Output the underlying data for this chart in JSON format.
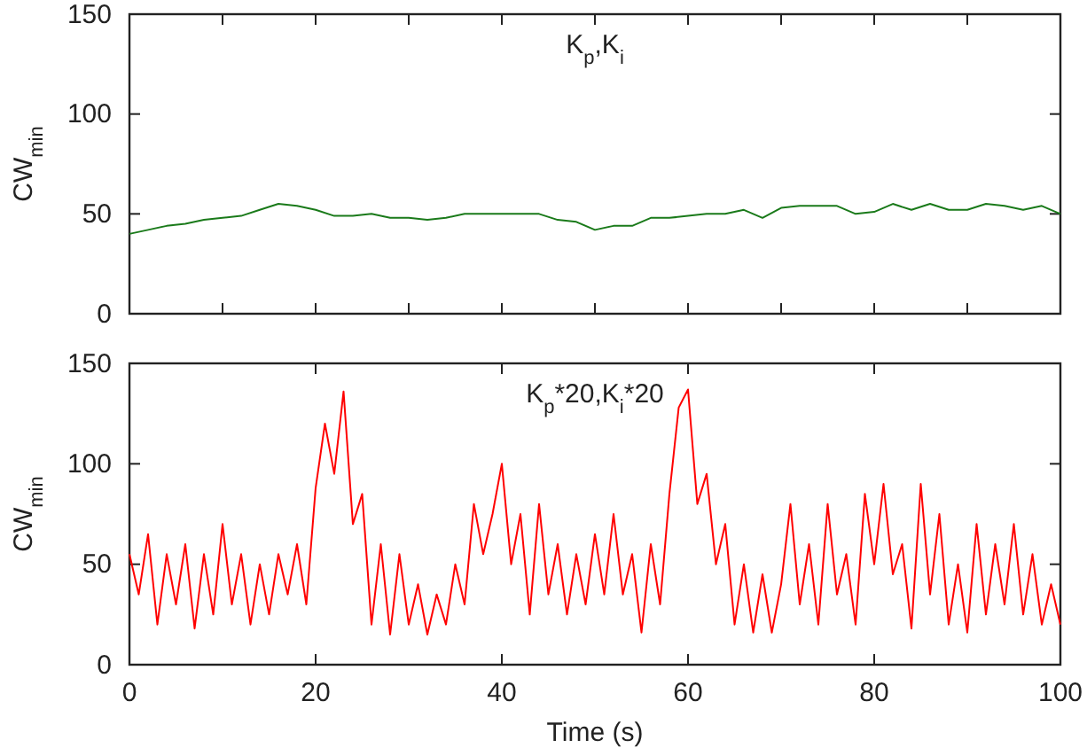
{
  "chart_data": [
    {
      "type": "line",
      "title": "K$_{p}$,K$_{i}$",
      "ylabel": "CW$_{min}$",
      "x": [
        0,
        2,
        4,
        6,
        8,
        10,
        12,
        14,
        16,
        18,
        20,
        22,
        24,
        26,
        28,
        30,
        32,
        34,
        36,
        38,
        40,
        42,
        44,
        46,
        48,
        50,
        52,
        54,
        56,
        58,
        60,
        62,
        64,
        66,
        68,
        70,
        72,
        74,
        76,
        78,
        80,
        82,
        84,
        86,
        88,
        90,
        92,
        94,
        96,
        98,
        100
      ],
      "series": [
        {
          "color": "#1a7a1a",
          "values": [
            40,
            42,
            44,
            45,
            47,
            48,
            49,
            52,
            55,
            54,
            52,
            49,
            49,
            50,
            48,
            48,
            47,
            48,
            50,
            50,
            50,
            50,
            50,
            47,
            46,
            42,
            44,
            44,
            48,
            48,
            49,
            50,
            50,
            52,
            48,
            53,
            54,
            54,
            54,
            50,
            51,
            55,
            52,
            55,
            52,
            52,
            55,
            54,
            52,
            54,
            50
          ]
        }
      ],
      "xlim": [
        0,
        100
      ],
      "ylim": [
        0,
        150
      ],
      "xticks": [
        {
          "value": 0,
          "label": null
        },
        {
          "value": 10,
          "label": null
        },
        {
          "value": 20,
          "label": null
        },
        {
          "value": 30,
          "label": null
        },
        {
          "value": 40,
          "label": null
        },
        {
          "value": 50,
          "label": null
        },
        {
          "value": 60,
          "label": null
        },
        {
          "value": 70,
          "label": null
        },
        {
          "value": 80,
          "label": null
        },
        {
          "value": 90,
          "label": null
        },
        {
          "value": 100,
          "label": null
        }
      ],
      "yticks": [
        0,
        50,
        100,
        150
      ],
      "tick_labels": "y",
      "grid": false
    },
    {
      "type": "line",
      "title": "K$_{p}$*20,K$_{i}$*20",
      "ylabel": "CW$_{min}$",
      "xlabel": "Time (s)",
      "x": [
        0,
        1,
        2,
        3,
        4,
        5,
        6,
        7,
        8,
        9,
        10,
        11,
        12,
        13,
        14,
        15,
        16,
        17,
        18,
        19,
        20,
        21,
        22,
        23,
        24,
        25,
        26,
        27,
        28,
        29,
        30,
        31,
        32,
        33,
        34,
        35,
        36,
        37,
        38,
        39,
        40,
        41,
        42,
        43,
        44,
        45,
        46,
        47,
        48,
        49,
        50,
        51,
        52,
        53,
        54,
        55,
        56,
        57,
        58,
        59,
        60,
        61,
        62,
        63,
        64,
        65,
        66,
        67,
        68,
        69,
        70,
        71,
        72,
        73,
        74,
        75,
        76,
        77,
        78,
        79,
        80,
        81,
        82,
        83,
        84,
        85,
        86,
        87,
        88,
        89,
        90,
        91,
        92,
        93,
        94,
        95,
        96,
        97,
        98,
        99,
        100
      ],
      "series": [
        {
          "color": "#ff0000",
          "values": [
            55,
            35,
            65,
            20,
            55,
            30,
            60,
            18,
            55,
            25,
            70,
            30,
            55,
            20,
            50,
            25,
            55,
            35,
            60,
            30,
            88,
            120,
            95,
            136,
            70,
            85,
            20,
            60,
            15,
            55,
            20,
            40,
            15,
            35,
            20,
            50,
            30,
            80,
            55,
            75,
            100,
            50,
            75,
            25,
            80,
            35,
            60,
            25,
            55,
            30,
            65,
            35,
            75,
            35,
            55,
            16,
            60,
            30,
            85,
            128,
            137,
            80,
            95,
            50,
            70,
            20,
            50,
            16,
            45,
            16,
            40,
            80,
            30,
            60,
            20,
            80,
            35,
            55,
            20,
            85,
            50,
            90,
            45,
            60,
            18,
            90,
            35,
            75,
            20,
            50,
            16,
            70,
            25,
            60,
            30,
            70,
            25,
            55,
            20,
            40,
            20
          ]
        }
      ],
      "xlim": [
        0,
        100
      ],
      "ylim": [
        0,
        150
      ],
      "xticks": [
        0,
        20,
        40,
        60,
        80,
        100
      ],
      "yticks": [
        0,
        50,
        100,
        150
      ],
      "grid": false
    }
  ]
}
